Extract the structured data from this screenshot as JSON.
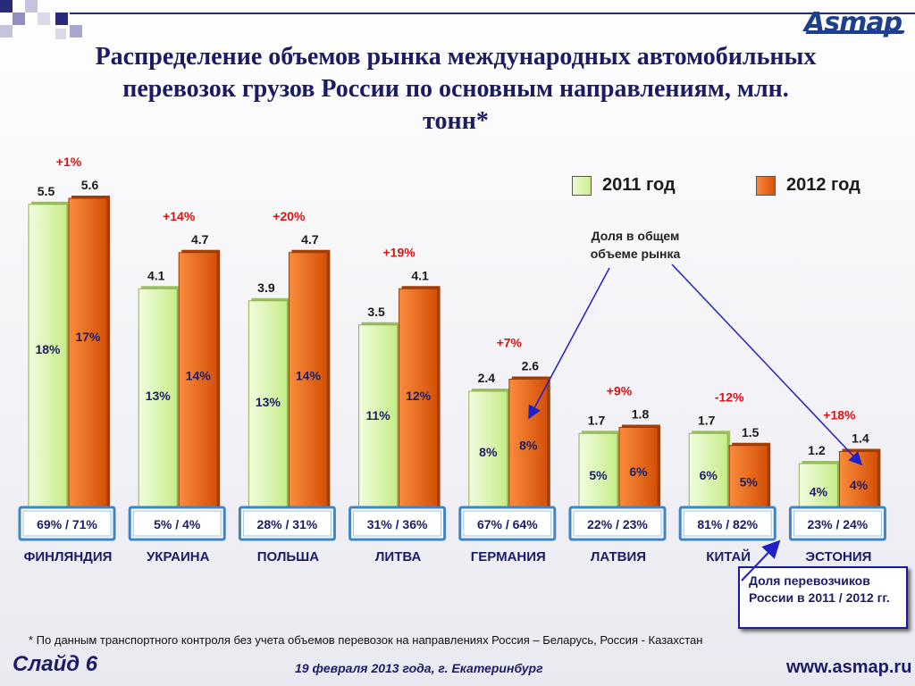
{
  "title": "Распределение объемов рынка международных автомобильных перевозок грузов России по основным направлениям, млн. тонн*",
  "logo_text": "Asmap",
  "legend": [
    {
      "label": "2011 год",
      "color": "#d7f5a6"
    },
    {
      "label": "2012 год",
      "color": "#f06b16"
    }
  ],
  "colors": {
    "bar_2011": "#d7f5a6",
    "bar_2012": "#f06b16",
    "change": "#e01010",
    "share_box": "#3f84c4",
    "arrow": "#2020c8"
  },
  "chart_data": {
    "type": "bar",
    "categories": [
      "ФИНЛЯНДИЯ",
      "УКРАИНА",
      "ПОЛЬША",
      "ЛИТВА",
      "ГЕРМАНИЯ",
      "ЛАТВИЯ",
      "КИТАЙ",
      "ЭСТОНИЯ"
    ],
    "series": [
      {
        "name": "2011 год",
        "values": [
          5.5,
          4.1,
          3.9,
          3.5,
          2.4,
          1.7,
          1.7,
          1.2
        ],
        "labels": [
          "5.5",
          "4.1",
          "3.9",
          "3.5",
          "2.4",
          "1.7",
          "1.7",
          "1.2"
        ],
        "market_share": [
          "18%",
          "13%",
          "13%",
          "11%",
          "8%",
          "5%",
          "6%",
          "4%"
        ]
      },
      {
        "name": "2012 год",
        "values": [
          5.6,
          4.7,
          4.7,
          4.1,
          2.6,
          1.8,
          1.5,
          1.4
        ],
        "labels": [
          "5.6",
          "4.7",
          "4.7",
          "4.1",
          "2.6",
          "1.8",
          "1.5",
          "1.4"
        ],
        "market_share": [
          "17%",
          "14%",
          "14%",
          "12%",
          "8%",
          "6%",
          "5%",
          "4%"
        ]
      }
    ],
    "change": [
      "+1%",
      "+14%",
      "+20%",
      "+19%",
      "+7%",
      "+9%",
      "-12%",
      "+18%"
    ],
    "carrier_share": [
      "69% /  71%",
      "5% /  4%",
      "28% / 31%",
      "31% /  36%",
      "67% / 64%",
      "22% / 23%",
      "81% / 82%",
      "23% / 24%"
    ],
    "ylim": [
      0,
      6.0
    ]
  },
  "annotations": {
    "market_share": "Доля в общем объеме рынка",
    "carrier_share": "Доля перевозчиков России в 2011 / 2012 гг."
  },
  "footnote": "* По данным транспортного контроля без учета объемов перевозок на направлениях Россия – Беларусь, Россия - Казахстан",
  "footer": {
    "slide": "Слайд 6",
    "date_place": "19 февраля 2013 года,   г. Екатеринбург",
    "site": "www.asmap.ru"
  }
}
